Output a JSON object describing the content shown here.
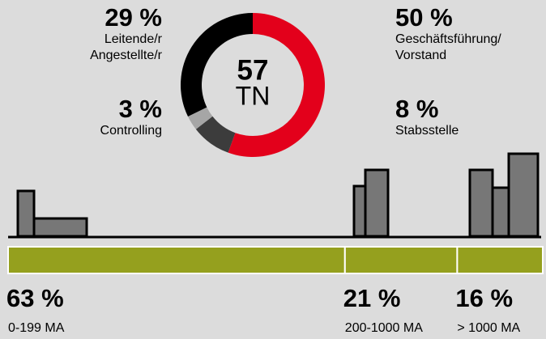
{
  "chart_data": [
    {
      "type": "donut",
      "total": 57,
      "center_label": "TN",
      "categories": [
        "Geschäftsführung/\nVorstand",
        "Stabsstelle",
        "Controlling",
        "Leitende/r\nAngestellte/r"
      ],
      "values": [
        50,
        8,
        3,
        29
      ],
      "value_labels": [
        "50 %",
        "8 %",
        "3 %",
        "29 %"
      ],
      "colors": [
        "#e3001b",
        "#3c3c3c",
        "#a6a6a6",
        "#000000"
      ]
    },
    {
      "type": "stacked-bar",
      "categories": [
        "0-199 MA",
        "200-1000 MA",
        "> 1000 MA"
      ],
      "values": [
        63,
        21,
        16
      ],
      "value_labels": [
        "63 %",
        "21 %",
        "16 %"
      ],
      "color": "#95a01e"
    }
  ]
}
